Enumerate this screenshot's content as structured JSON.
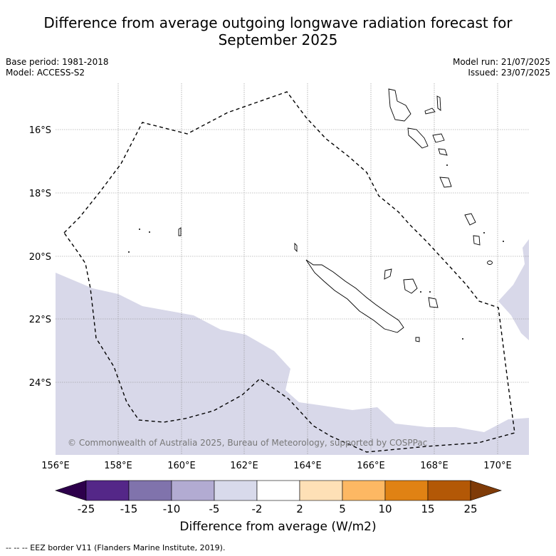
{
  "header": {
    "title_line1": "Difference from average outgoing longwave radiation forecast for",
    "title_line2": "September 2025",
    "base_period": "Base period: 1981-2018",
    "model": "Model: ACCESS-S2",
    "model_run": "Model run: 21/07/2025",
    "issued": "Issued: 23/07/2025"
  },
  "map": {
    "lon_labels": [
      "156°E",
      "158°E",
      "160°E",
      "162°E",
      "164°E",
      "166°E",
      "168°E",
      "170°E"
    ],
    "lat_labels": [
      "16°S",
      "18°S",
      "20°S",
      "22°S",
      "24°S"
    ],
    "copyright": "© Commonwealth of Australia 2025, Bureau of Meteorology, supported by COSPPac",
    "colors": {
      "anomaly_fill": "#d8d8e9",
      "grid": "#888888",
      "border": "#000000"
    }
  },
  "colorbar": {
    "label": "Difference from average (W/m2)",
    "tick_labels": [
      "-25",
      "-15",
      "-10",
      "-5",
      "-2",
      "2",
      "5",
      "10",
      "15",
      "25"
    ],
    "colors": [
      "#2d004b",
      "#542788",
      "#8073ac",
      "#b2abd2",
      "#d8daeb",
      "#ffffff",
      "#fee0b6",
      "#fdb863",
      "#e08214",
      "#b35806",
      "#7f3b08"
    ]
  },
  "footnote": "--  --  -- EEZ border V11 (Flanders Marine Institute, 2019)."
}
